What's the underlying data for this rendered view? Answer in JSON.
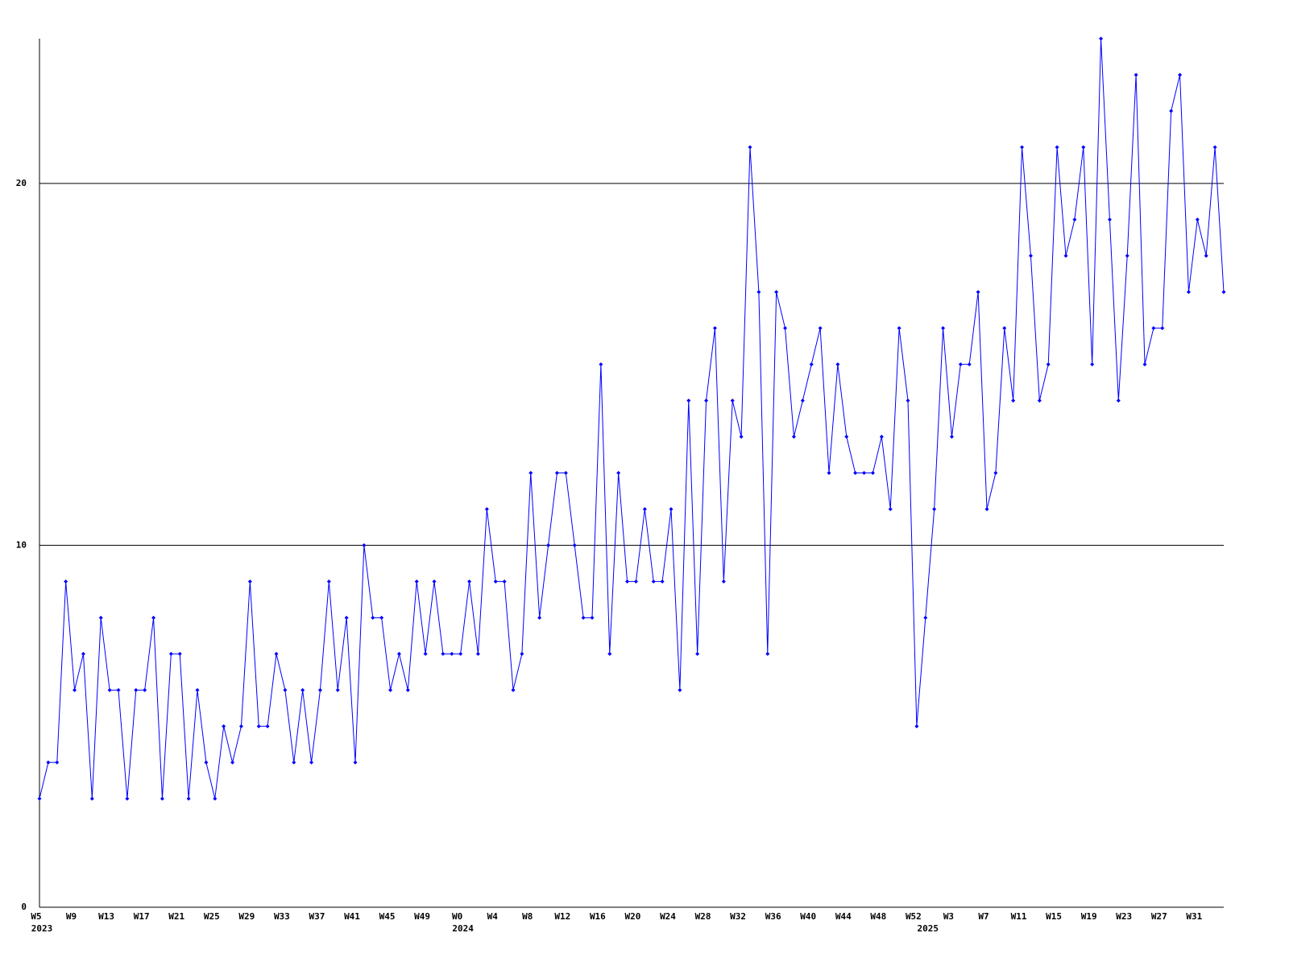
{
  "chart_data": {
    "type": "line",
    "color": "#0000ff",
    "ylim": [
      0,
      24
    ],
    "yticks": [
      0,
      10,
      20
    ],
    "grid": true,
    "categories": [
      "W5",
      null,
      null,
      null,
      "W9",
      null,
      null,
      null,
      "W13",
      null,
      null,
      null,
      "W17",
      null,
      null,
      null,
      "W21",
      null,
      null,
      null,
      "W25",
      null,
      null,
      null,
      "W29",
      null,
      null,
      null,
      "W33",
      null,
      null,
      null,
      "W37",
      null,
      null,
      null,
      "W41",
      null,
      null,
      null,
      "W45",
      null,
      null,
      null,
      "W49",
      null,
      null,
      null,
      "W0",
      null,
      null,
      null,
      "W4",
      null,
      null,
      null,
      "W8",
      null,
      null,
      null,
      "W12",
      null,
      null,
      null,
      "W16",
      null,
      null,
      null,
      "W20",
      null,
      null,
      null,
      "W24",
      null,
      null,
      null,
      "W28",
      null,
      null,
      null,
      "W32",
      null,
      null,
      null,
      "W36",
      null,
      null,
      null,
      "W40",
      null,
      null,
      null,
      "W44",
      null,
      null,
      null,
      "W48",
      null,
      null,
      null,
      "W52",
      null,
      null,
      null,
      "W3",
      null,
      null,
      null,
      "W7",
      null,
      null,
      null,
      "W11",
      null,
      null,
      null,
      "W15",
      null,
      null,
      null,
      "W19",
      null,
      null,
      null,
      "W23",
      null,
      null,
      null,
      "W27",
      null,
      null,
      null,
      "W31",
      null,
      null,
      null
    ],
    "category_years": [
      "2023",
      null,
      null,
      null,
      null,
      null,
      null,
      null,
      null,
      null,
      null,
      null,
      null,
      null,
      null,
      null,
      null,
      null,
      null,
      null,
      null,
      null,
      null,
      null,
      null,
      null,
      null,
      null,
      null,
      null,
      null,
      null,
      null,
      null,
      null,
      null,
      null,
      null,
      null,
      null,
      null,
      null,
      null,
      null,
      null,
      null,
      null,
      null,
      "2024",
      null,
      null,
      null,
      null,
      null,
      null,
      null,
      null,
      null,
      null,
      null,
      null,
      null,
      null,
      null,
      null,
      null,
      null,
      null,
      null,
      null,
      null,
      null,
      null,
      null,
      null,
      null,
      null,
      null,
      null,
      null,
      null,
      null,
      null,
      null,
      null,
      null,
      null,
      null,
      null,
      null,
      null,
      null,
      null,
      null,
      null,
      null,
      null,
      null,
      null,
      null,
      null,
      "2025",
      null,
      null,
      null,
      null,
      null,
      null,
      null,
      null,
      null,
      null,
      null,
      null,
      null,
      null,
      null,
      null,
      null,
      null,
      null,
      null,
      null,
      null,
      null,
      null,
      null,
      null,
      null,
      null,
      null,
      null,
      null,
      null,
      null,
      null
    ],
    "values": [
      3,
      4,
      4,
      9,
      6,
      7,
      3,
      8,
      6,
      6,
      3,
      6,
      6,
      8,
      3,
      7,
      7,
      3,
      6,
      4,
      3,
      5,
      4,
      5,
      9,
      5,
      5,
      7,
      6,
      4,
      6,
      4,
      6,
      9,
      6,
      8,
      4,
      10,
      8,
      8,
      6,
      7,
      6,
      9,
      7,
      9,
      7,
      7,
      7,
      9,
      7,
      11,
      9,
      9,
      6,
      7,
      12,
      8,
      10,
      12,
      12,
      10,
      8,
      8,
      15,
      7,
      12,
      9,
      9,
      11,
      9,
      9,
      11,
      6,
      14,
      7,
      14,
      16,
      9,
      14,
      13,
      21,
      17,
      7,
      17,
      16,
      13,
      14,
      15,
      16,
      12,
      15,
      13,
      12,
      12,
      12,
      13,
      11,
      16,
      14,
      5,
      8,
      11,
      16,
      13,
      15,
      15,
      17,
      11,
      12,
      16,
      14,
      21,
      18,
      14,
      15,
      21,
      18,
      19,
      21,
      15,
      24,
      19,
      14,
      18,
      23,
      15,
      16,
      16,
      22,
      23,
      17,
      19,
      18,
      21,
      17
    ]
  }
}
